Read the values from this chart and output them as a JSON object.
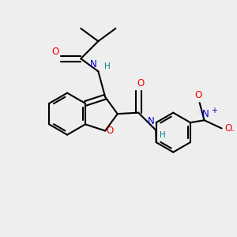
{
  "bg_color": "#eeeeee",
  "bond_lw": 1.5,
  "atom_colors": {
    "O": "#ff0000",
    "N": "#0000cc",
    "H": "#008080",
    "C": "#000000"
  },
  "fs_label": 8.5,
  "fs_small": 7.0
}
